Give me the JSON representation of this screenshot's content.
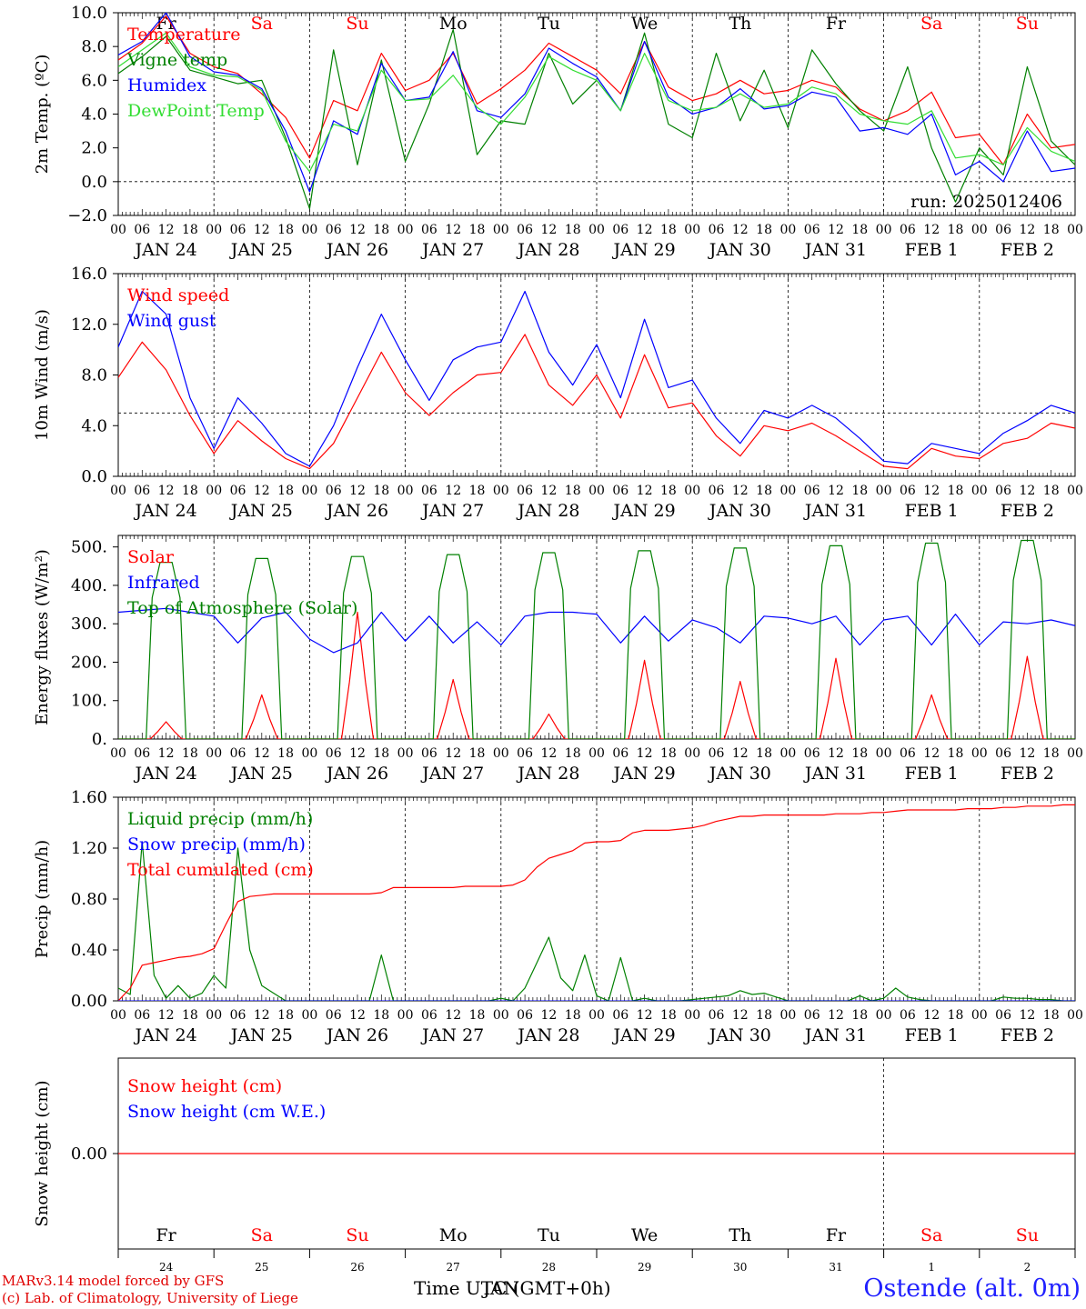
{
  "meta": {
    "run_label": "run: 2025012406",
    "credit_line1": "MARv3.14 model forced by GFS",
    "credit_line2": "(c) Lab. of Climatology, University of Liege",
    "xaxis_label": "Time UTC (GMT+0h)",
    "xaxis_overlay": "JAN",
    "station": "Ostende (alt. 0m)"
  },
  "days": {
    "weekday": [
      "Fr",
      "Sa",
      "Su",
      "Mo",
      "Tu",
      "We",
      "Th",
      "Fr",
      "Sa",
      "Su"
    ],
    "weekend": [
      false,
      true,
      true,
      false,
      false,
      false,
      false,
      false,
      true,
      true
    ],
    "dates": [
      "JAN 24",
      "JAN 25",
      "JAN 26",
      "JAN 27",
      "JAN 28",
      "JAN 29",
      "JAN 30",
      "JAN 31",
      "FEB  1",
      "FEB  2"
    ],
    "day_numbers": [
      "24",
      "25",
      "26",
      "27",
      "28",
      "29",
      "30",
      "31",
      "1",
      "2"
    ],
    "hour_ticks": [
      "00",
      "06",
      "12",
      "18"
    ],
    "last_tick": "00"
  },
  "colors": {
    "red": "#ff0000",
    "green": "#008000",
    "blue": "#0000ff",
    "lightgreen": "#33dd33",
    "weekend": "#ff0000",
    "station": "#2020ff"
  },
  "chart_data": [
    {
      "type": "line",
      "ylabel": "2m Temp. (ºC)",
      "ylim": [
        -2,
        10
      ],
      "yticks": [
        "10.0",
        "8.0",
        "6.0",
        "4.0",
        "2.0",
        "0.0",
        "−2.0"
      ],
      "ytick_values": [
        10,
        8,
        6,
        4,
        2,
        0,
        -2
      ],
      "hline": 0,
      "x_hours": [
        0,
        6,
        12,
        18,
        24,
        30,
        36,
        42,
        48,
        54,
        60,
        66,
        72,
        78,
        84,
        90,
        96,
        102,
        108,
        114,
        120,
        126,
        132,
        138,
        144,
        150,
        156,
        162,
        168,
        174,
        180,
        186,
        192,
        198,
        204,
        210,
        216,
        222,
        228,
        234,
        240
      ],
      "series": [
        {
          "name": "Temperature",
          "color": "red",
          "values": [
            7.2,
            8.2,
            9.8,
            7.6,
            6.8,
            6.4,
            5.2,
            3.8,
            1.4,
            4.8,
            4.2,
            7.6,
            5.4,
            6.0,
            7.6,
            4.6,
            5.5,
            6.6,
            8.2,
            7.4,
            6.6,
            5.2,
            8.3,
            5.6,
            4.8,
            5.2,
            6.0,
            5.2,
            5.4,
            6.0,
            5.6,
            4.3,
            3.6,
            4.2,
            5.3,
            2.6,
            2.8,
            1.0,
            4.0,
            2.0,
            2.2
          ]
        },
        {
          "name": "Vigne temp",
          "color": "green",
          "values": [
            6.4,
            7.4,
            8.6,
            6.6,
            6.2,
            5.8,
            6.0,
            2.6,
            -1.6,
            7.8,
            1.0,
            7.2,
            1.2,
            4.6,
            9.0,
            1.6,
            3.6,
            3.4,
            7.6,
            4.6,
            6.0,
            4.2,
            8.8,
            3.4,
            2.6,
            7.6,
            3.6,
            6.6,
            3.2,
            7.8,
            5.8,
            4.2,
            3.0,
            6.8,
            2.0,
            -1.2,
            2.0,
            0.4,
            6.8,
            2.4,
            1.0
          ]
        },
        {
          "name": "Humidex",
          "color": "blue",
          "values": [
            7.5,
            8.3,
            10.0,
            7.4,
            6.5,
            6.3,
            5.5,
            3.0,
            -0.6,
            3.6,
            2.8,
            7.0,
            4.8,
            5.0,
            7.7,
            4.2,
            3.8,
            5.2,
            7.9,
            7.0,
            6.2,
            4.2,
            8.3,
            5.0,
            4.0,
            4.4,
            5.5,
            4.3,
            4.5,
            5.3,
            5.0,
            3.0,
            3.2,
            2.8,
            4.0,
            0.4,
            1.2,
            0.0,
            3.0,
            0.6,
            0.8
          ]
        },
        {
          "name": "DewPoint Temp",
          "color": "lightgreen",
          "values": [
            6.8,
            7.8,
            8.8,
            6.8,
            6.3,
            6.2,
            5.4,
            2.4,
            0.6,
            3.4,
            3.0,
            6.6,
            4.8,
            4.9,
            6.3,
            4.4,
            3.4,
            5.0,
            7.4,
            6.6,
            6.0,
            4.2,
            7.6,
            4.8,
            4.2,
            4.4,
            5.2,
            4.4,
            4.6,
            5.6,
            5.2,
            4.0,
            3.6,
            3.4,
            4.2,
            1.4,
            1.6,
            1.0,
            3.2,
            1.8,
            1.2
          ]
        }
      ]
    },
    {
      "type": "line",
      "ylabel": "10m Wind (m/s)",
      "ylim": [
        0,
        16
      ],
      "yticks": [
        "16.0",
        "12.0",
        "8.0",
        "4.0",
        "0.0"
      ],
      "ytick_values": [
        16,
        12,
        8,
        4,
        0
      ],
      "hline": 5,
      "x_hours": [
        0,
        6,
        12,
        18,
        24,
        30,
        36,
        42,
        48,
        54,
        60,
        66,
        72,
        78,
        84,
        90,
        96,
        102,
        108,
        114,
        120,
        126,
        132,
        138,
        144,
        150,
        156,
        162,
        168,
        174,
        180,
        186,
        192,
        198,
        204,
        210,
        216,
        222,
        228,
        234,
        240
      ],
      "series": [
        {
          "name": "Wind speed",
          "color": "red",
          "values": [
            7.8,
            10.6,
            8.4,
            4.8,
            1.8,
            4.4,
            2.8,
            1.4,
            0.6,
            2.6,
            6.2,
            9.8,
            6.6,
            4.8,
            6.6,
            8.0,
            8.2,
            11.2,
            7.2,
            5.6,
            8.0,
            4.6,
            9.6,
            5.4,
            5.8,
            3.2,
            1.6,
            4.0,
            3.6,
            4.2,
            3.2,
            2.0,
            0.8,
            0.6,
            2.2,
            1.6,
            1.4,
            2.6,
            3.0,
            4.2,
            3.8
          ]
        },
        {
          "name": "Wind gust",
          "color": "blue",
          "values": [
            10.2,
            14.6,
            12.8,
            6.2,
            2.2,
            6.2,
            4.2,
            1.8,
            0.8,
            4.0,
            8.6,
            12.8,
            9.2,
            6.0,
            9.2,
            10.2,
            10.6,
            14.6,
            9.8,
            7.2,
            10.4,
            6.2,
            12.4,
            7.0,
            7.6,
            4.6,
            2.6,
            5.2,
            4.6,
            5.6,
            4.6,
            3.0,
            1.2,
            1.0,
            2.6,
            2.2,
            1.8,
            3.4,
            4.4,
            5.6,
            5.0
          ]
        }
      ]
    },
    {
      "type": "line",
      "ylabel": "Energy fluxes (W/m²)",
      "ylim": [
        0,
        530
      ],
      "yticks": [
        "500.",
        "400.",
        "300.",
        "200.",
        "100.",
        "0."
      ],
      "ytick_values": [
        500,
        400,
        300,
        200,
        100,
        0
      ],
      "day_peaks": {
        "Solar": [
          45,
          115,
          330,
          155,
          65,
          205,
          150,
          210,
          115,
          215
        ],
        "Top of Atmosphere (Solar)": [
          460,
          470,
          475,
          480,
          485,
          490,
          497,
          503,
          510,
          517
        ]
      },
      "series": [
        {
          "name": "Solar",
          "color": "red"
        },
        {
          "name": "Infrared",
          "color": "blue",
          "values": [
            330,
            335,
            340,
            330,
            320,
            250,
            315,
            330,
            260,
            225,
            250,
            330,
            255,
            320,
            250,
            305,
            245,
            320,
            330,
            330,
            325,
            250,
            320,
            255,
            310,
            290,
            250,
            320,
            315,
            300,
            320,
            245,
            310,
            320,
            245,
            325,
            245,
            305,
            300,
            310,
            295
          ]
        },
        {
          "name": "Top of Atmosphere (Solar)",
          "color": "green"
        }
      ]
    },
    {
      "type": "line",
      "ylabel": "Precip (mm/h)",
      "ylim": [
        0,
        1.6
      ],
      "yticks": [
        "1.60",
        "1.20",
        "0.80",
        "0.40",
        "0.00"
      ],
      "ytick_values": [
        1.6,
        1.2,
        0.8,
        0.4,
        0.0
      ],
      "x_hours": [
        0,
        3,
        6,
        9,
        12,
        15,
        18,
        21,
        24,
        27,
        30,
        33,
        36,
        39,
        42,
        45,
        48,
        51,
        54,
        57,
        60,
        63,
        66,
        69,
        72,
        75,
        78,
        81,
        84,
        87,
        90,
        93,
        96,
        99,
        102,
        105,
        108,
        111,
        114,
        117,
        120,
        123,
        126,
        129,
        132,
        135,
        138,
        141,
        144,
        147,
        150,
        153,
        156,
        159,
        162,
        165,
        168,
        171,
        174,
        177,
        180,
        183,
        186,
        189,
        192,
        195,
        198,
        201,
        204,
        207,
        210,
        213,
        216,
        219,
        222,
        225,
        228,
        231,
        234,
        237,
        240
      ],
      "series": [
        {
          "name": "Liquid precip (mm/h)",
          "color": "green",
          "values": [
            0.1,
            0.05,
            1.25,
            0.2,
            0.02,
            0.12,
            0.02,
            0.06,
            0.2,
            0.1,
            1.2,
            0.4,
            0.12,
            0.06,
            0,
            0,
            0,
            0,
            0,
            0,
            0,
            0,
            0.36,
            0,
            0,
            0,
            0,
            0,
            0,
            0,
            0,
            0,
            0.02,
            0,
            0.1,
            0.3,
            0.5,
            0.18,
            0.08,
            0.36,
            0.04,
            0,
            0.34,
            0,
            0.02,
            0,
            0,
            0,
            0.01,
            0.02,
            0.03,
            0.04,
            0.08,
            0.05,
            0.06,
            0.03,
            0,
            0,
            0,
            0,
            0,
            0,
            0.04,
            0,
            0.02,
            0.1,
            0.03,
            0.01,
            0,
            0,
            0,
            0,
            0,
            0,
            0.03,
            0.02,
            0.02,
            0.01,
            0.01,
            0,
            0
          ]
        },
        {
          "name": "Snow precip (mm/h)",
          "color": "blue",
          "values": []
        },
        {
          "name": "Total cumulated (cm)",
          "color": "red",
          "values": [
            0,
            0.1,
            0.28,
            0.3,
            0.32,
            0.34,
            0.35,
            0.37,
            0.41,
            0.6,
            0.78,
            0.82,
            0.83,
            0.84,
            0.84,
            0.84,
            0.84,
            0.84,
            0.84,
            0.84,
            0.84,
            0.84,
            0.85,
            0.89,
            0.89,
            0.89,
            0.89,
            0.89,
            0.89,
            0.9,
            0.9,
            0.9,
            0.9,
            0.91,
            0.95,
            1.05,
            1.12,
            1.15,
            1.18,
            1.24,
            1.25,
            1.25,
            1.26,
            1.32,
            1.34,
            1.34,
            1.34,
            1.35,
            1.36,
            1.38,
            1.41,
            1.43,
            1.45,
            1.45,
            1.46,
            1.46,
            1.46,
            1.46,
            1.46,
            1.46,
            1.47,
            1.47,
            1.47,
            1.48,
            1.48,
            1.49,
            1.5,
            1.5,
            1.5,
            1.5,
            1.5,
            1.51,
            1.51,
            1.51,
            1.52,
            1.52,
            1.53,
            1.53,
            1.53,
            1.54,
            1.54
          ]
        }
      ]
    },
    {
      "type": "line",
      "ylabel": "Snow height (cm)",
      "ylim": [
        -1,
        1
      ],
      "yticks": [
        "0.00"
      ],
      "ytick_values": [
        0
      ],
      "series": [
        {
          "name": "Snow height (cm)",
          "color": "red",
          "values": [
            0,
            0
          ]
        },
        {
          "name": "Snow height (cm W.E.)",
          "color": "blue",
          "values": []
        }
      ]
    }
  ]
}
